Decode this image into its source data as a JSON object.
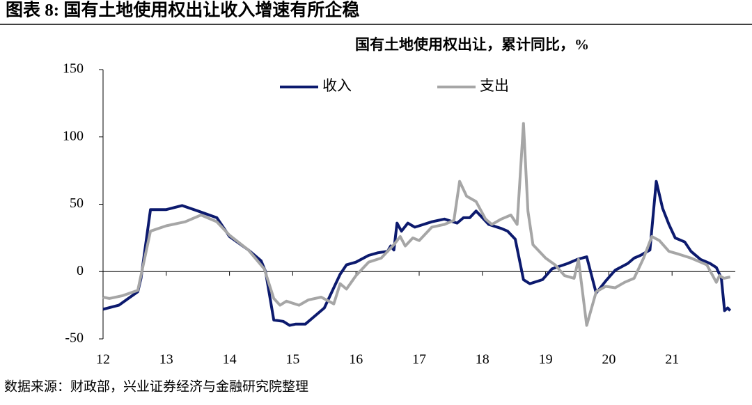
{
  "chart_data": {
    "type": "line",
    "title": "图表 8: 国有土地使用权出让收入增速有所企稳",
    "subtitle": "国有土地使用权出让，累计同比，%",
    "source": "数据来源：财政部，兴业证券经济与金融研究院整理",
    "xlim": [
      12,
      22
    ],
    "xticks": [
      12,
      13,
      14,
      15,
      16,
      17,
      18,
      19,
      20,
      21
    ],
    "ylim": [
      -50,
      150
    ],
    "yticks": [
      -50,
      0,
      50,
      100,
      150
    ],
    "legend": "top",
    "series": [
      {
        "name": "收入",
        "color": "#0c1a6e",
        "x": [
          12.0,
          12.25,
          12.4,
          12.55,
          12.6,
          12.75,
          13.0,
          13.25,
          13.5,
          13.8,
          14.0,
          14.3,
          14.5,
          14.57,
          14.7,
          14.85,
          14.95,
          15.05,
          15.2,
          15.35,
          15.5,
          15.65,
          15.75,
          15.85,
          16.0,
          16.2,
          16.35,
          16.5,
          16.55,
          16.6,
          16.65,
          16.72,
          16.82,
          16.93,
          17.0,
          17.2,
          17.4,
          17.6,
          17.7,
          17.8,
          17.9,
          18.0,
          18.1,
          18.3,
          18.4,
          18.52,
          18.65,
          18.75,
          18.95,
          19.1,
          19.35,
          19.5,
          19.65,
          19.8,
          19.95,
          20.1,
          20.3,
          20.4,
          20.5,
          20.65,
          20.75,
          20.85,
          20.95,
          21.05,
          21.2,
          21.3,
          21.45,
          21.6,
          21.7,
          21.78,
          21.83,
          21.88,
          21.92
        ],
        "values": [
          -28,
          -25,
          -20,
          -15,
          -5,
          46,
          46,
          49,
          45,
          40,
          26,
          16,
          8,
          0,
          -36,
          -37,
          -40,
          -39,
          -39,
          -33,
          -27,
          -12,
          -2,
          5,
          7,
          12,
          14,
          15,
          19,
          16,
          36,
          30,
          36,
          33,
          34,
          37,
          39,
          36,
          40,
          40,
          45,
          40,
          35,
          32,
          30,
          24,
          -6,
          -9,
          -6,
          2,
          6,
          9,
          11,
          -16,
          -7,
          1,
          6,
          10,
          12,
          16,
          67,
          47,
          35,
          25,
          22,
          15,
          9,
          6,
          3,
          -5,
          -29,
          -27,
          -29
        ]
      },
      {
        "name": "支出",
        "color": "#a6a6a6",
        "x": [
          12.0,
          12.1,
          12.3,
          12.55,
          12.75,
          13.0,
          13.3,
          13.55,
          13.8,
          14.0,
          14.3,
          14.55,
          14.7,
          14.8,
          14.9,
          15.1,
          15.25,
          15.45,
          15.65,
          15.75,
          15.85,
          16.0,
          16.2,
          16.4,
          16.6,
          16.7,
          16.78,
          16.9,
          17.0,
          17.2,
          17.4,
          17.55,
          17.64,
          17.75,
          17.9,
          18.05,
          18.15,
          18.3,
          18.45,
          18.55,
          18.65,
          18.72,
          18.8,
          19.0,
          19.15,
          19.3,
          19.45,
          19.52,
          19.65,
          19.8,
          19.95,
          20.1,
          20.25,
          20.4,
          20.55,
          20.68,
          20.8,
          20.95,
          21.1,
          21.3,
          21.45,
          21.55,
          21.7,
          21.75,
          21.82,
          21.92
        ],
        "values": [
          -19,
          -20,
          -18,
          -14,
          30,
          34,
          37,
          42,
          37,
          27,
          16,
          2,
          -20,
          -25,
          -22,
          -25,
          -21,
          -19,
          -24,
          -9,
          -13,
          -3,
          7,
          10,
          20,
          26,
          19,
          25,
          23,
          33,
          35,
          38,
          67,
          56,
          52,
          39,
          35,
          39,
          42,
          35,
          110,
          45,
          20,
          10,
          5,
          -3,
          -5,
          9,
          -40,
          -15,
          -11,
          -12,
          -8,
          -5,
          10,
          26,
          23,
          15,
          13,
          10,
          7,
          5,
          -8,
          -3,
          -5,
          -4
        ]
      }
    ]
  }
}
